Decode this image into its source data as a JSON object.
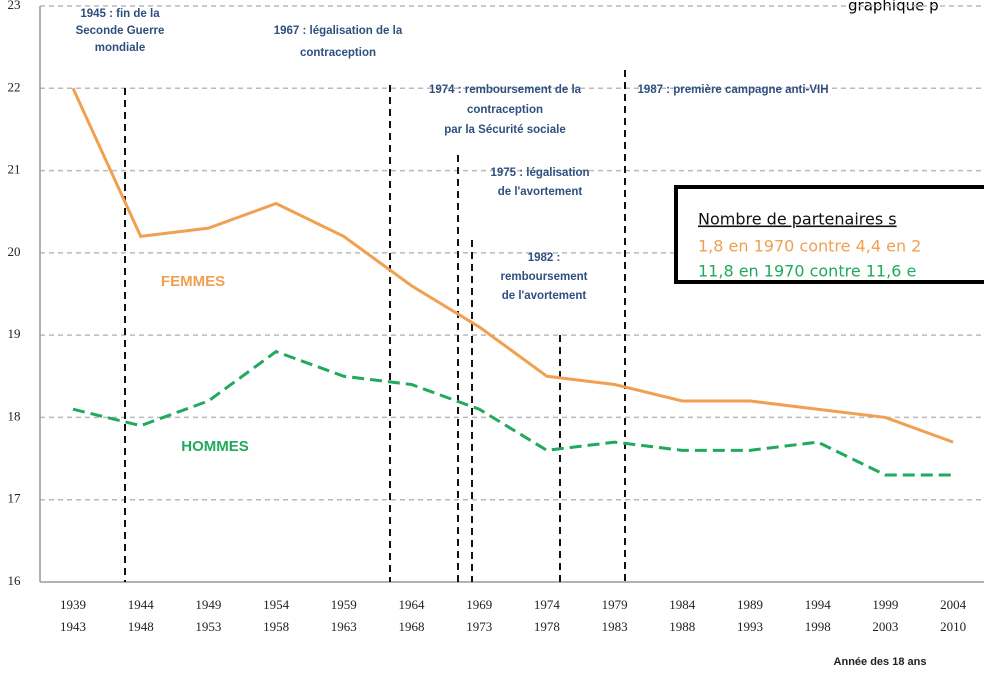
{
  "chart_data": {
    "type": "line",
    "header_text": "graphique p",
    "x_label": "Année des 18 ans",
    "categories": [
      [
        "1939",
        "1943"
      ],
      [
        "1944",
        "1948"
      ],
      [
        "1949",
        "1953"
      ],
      [
        "1954",
        "1958"
      ],
      [
        "1959",
        "1963"
      ],
      [
        "1964",
        "1968"
      ],
      [
        "1969",
        "1973"
      ],
      [
        "1974",
        "1978"
      ],
      [
        "1979",
        "1983"
      ],
      [
        "1984",
        "1988"
      ],
      [
        "1989",
        "1993"
      ],
      [
        "1994",
        "1998"
      ],
      [
        "1999",
        "2003"
      ],
      [
        "2004",
        "2010"
      ]
    ],
    "series": [
      {
        "name": "FEMMES",
        "color": "#f0a050",
        "values": [
          22.0,
          20.2,
          20.3,
          20.6,
          20.2,
          19.6,
          19.1,
          18.5,
          18.4,
          18.2,
          18.2,
          18.1,
          18.0,
          17.7
        ]
      },
      {
        "name": "HOMMES",
        "color": "#1faa5c",
        "values": [
          18.1,
          17.9,
          18.2,
          18.8,
          18.5,
          18.4,
          18.1,
          17.6,
          17.7,
          17.6,
          17.6,
          17.7,
          17.3,
          17.3
        ]
      }
    ],
    "ylim": [
      16,
      23
    ],
    "yticks": [
      16,
      17,
      18,
      19,
      20,
      21,
      22,
      23
    ],
    "grid": true,
    "annotations": [
      {
        "lines": [
          "1945 : fin de la",
          "Seconde Guerre",
          "mondiale"
        ]
      },
      {
        "lines": [
          "1967 : légalisation de la",
          "contraception"
        ]
      },
      {
        "lines": [
          "1974 : remboursement de la",
          "contraception",
          "par la Sécurité sociale"
        ]
      },
      {
        "lines": [
          "1987 : première campagne anti-VIH"
        ]
      },
      {
        "lines": [
          "1975 : légalisation",
          "de l'avortement"
        ]
      },
      {
        "lines": [
          "1982 :",
          "remboursement",
          "de l'avortement"
        ]
      }
    ],
    "info_box": {
      "title": "Nombre de partenaires s",
      "lines": [
        "1,8 en 1970 contre 4,4 en 2",
        "11,8 en 1970 contre 11,6 e"
      ]
    }
  }
}
